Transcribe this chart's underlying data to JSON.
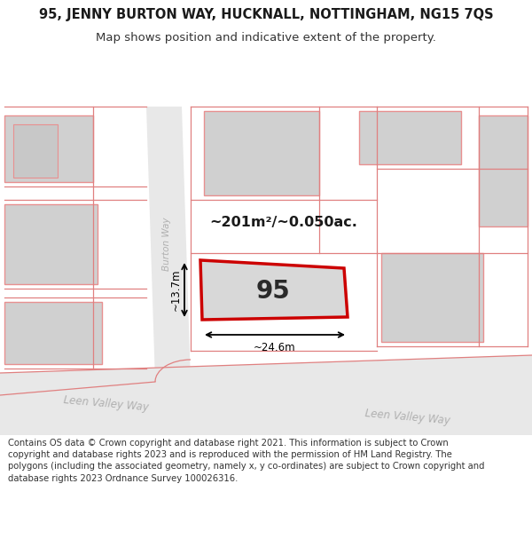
{
  "title_line1": "95, JENNY BURTON WAY, HUCKNALL, NOTTINGHAM, NG15 7QS",
  "title_line2": "Map shows position and indicative extent of the property.",
  "footer_text": "Contains OS data © Crown copyright and database right 2021. This information is subject to Crown copyright and database rights 2023 and is reproduced with the permission of HM Land Registry. The polygons (including the associated geometry, namely x, y co-ordinates) are subject to Crown copyright and database rights 2023 Ordnance Survey 100026316.",
  "area_label": "~201m²/~0.050ac.",
  "width_label": "~24.6m",
  "height_label": "~13.7m",
  "property_number": "95",
  "bg_color": "#efefef",
  "road_color": "#e0e0e0",
  "building_fill": "#d2d2d2",
  "building_outline": "#e8a0a0",
  "property_fill": "#d8d8d8",
  "property_outline": "#cc0000",
  "title_fontsize": 10.5,
  "subtitle_fontsize": 9.5,
  "footer_fontsize": 7.2
}
